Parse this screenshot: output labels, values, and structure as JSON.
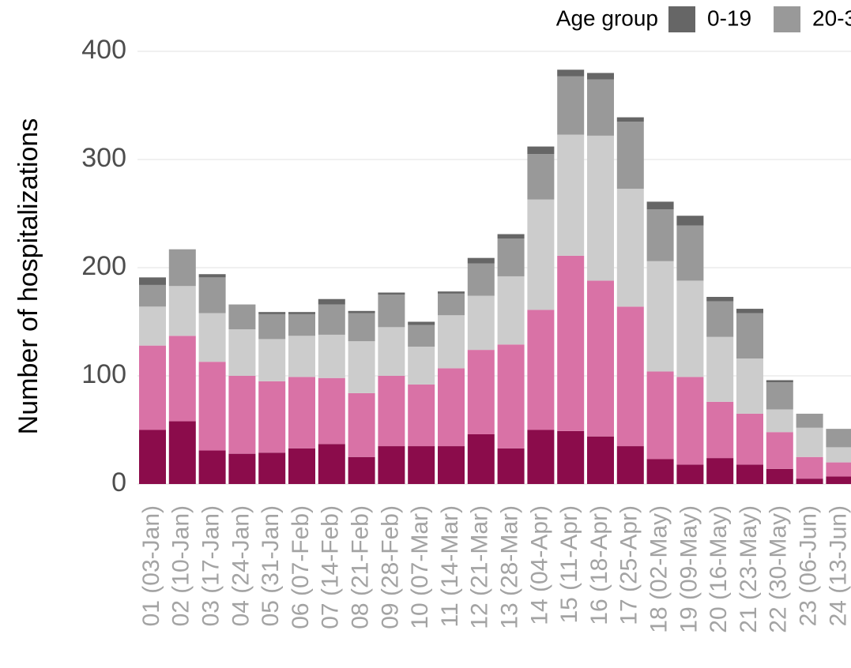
{
  "chart_data": {
    "type": "stacked_bar",
    "y_label": "Number of hospitalizations",
    "legend_title": "Age group",
    "categories": [
      "01 (03-Jan)",
      "02 (10-Jan)",
      "03 (17-Jan)",
      "04 (24-Jan)",
      "05 (31-Jan)",
      "06 (07-Feb)",
      "07 (14-Feb)",
      "08 (21-Feb)",
      "09 (28-Feb)",
      "10 (07-Mar)",
      "11 (14-Mar)",
      "12 (21-Mar)",
      "13 (28-Mar)",
      "14 (04-Apr)",
      "15 (11-Apr)",
      "16 (18-Apr)",
      "17 (25-Apr)",
      "18 (02-May)",
      "19 (09-May)",
      "20 (16-May)",
      "21 (23-May)",
      "22 (30-May)",
      "23 (06-Jun)",
      "24 (13-Jun)"
    ],
    "series": [
      {
        "color": "#8b0c4b",
        "values": [
          50,
          58,
          31,
          28,
          29,
          33,
          37,
          25,
          35,
          35,
          35,
          46,
          33,
          50,
          49,
          44,
          35,
          23,
          18,
          24,
          18,
          14,
          5,
          7
        ]
      },
      {
        "color": "#d972a6",
        "values": [
          78,
          79,
          82,
          72,
          66,
          66,
          61,
          59,
          65,
          57,
          72,
          78,
          96,
          111,
          162,
          144,
          129,
          81,
          81,
          52,
          47,
          34,
          20,
          13
        ]
      },
      {
        "color": "#cccccc",
        "values": [
          36,
          46,
          45,
          43,
          39,
          38,
          40,
          48,
          45,
          35,
          49,
          50,
          63,
          102,
          112,
          134,
          109,
          102,
          89,
          60,
          51,
          21,
          27,
          14
        ]
      },
      {
        "name": "20-3",
        "color": "#999999",
        "values": [
          20,
          34,
          33,
          23,
          23,
          20,
          28,
          26,
          30,
          20,
          20,
          30,
          35,
          42,
          54,
          52,
          62,
          48,
          51,
          33,
          42,
          25,
          13,
          17
        ]
      },
      {
        "name": "0-19",
        "color": "#666666",
        "values": [
          7,
          0,
          3,
          0,
          2,
          2,
          5,
          2,
          2,
          3,
          2,
          5,
          4,
          7,
          6,
          6,
          4,
          7,
          9,
          4,
          4,
          2,
          0,
          0
        ]
      }
    ],
    "ylim": [
      0,
      400
    ],
    "yticks": [
      0,
      100,
      200,
      300,
      400
    ],
    "grid": true
  }
}
